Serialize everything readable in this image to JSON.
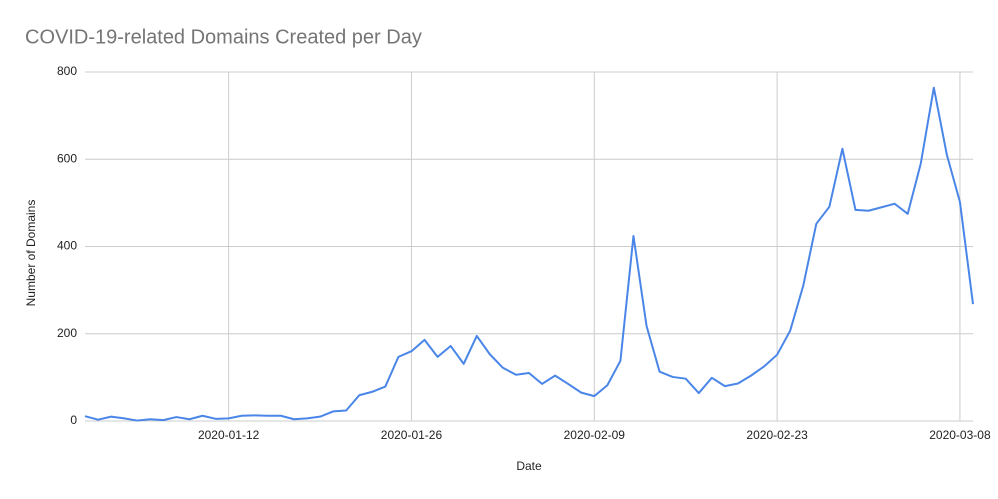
{
  "chart_data": {
    "type": "line",
    "title": "COVID-19-related Domains Created per Day",
    "x_label": "Date",
    "y_label": "Number of Domains",
    "x": [
      "2020-01-01",
      "2020-01-02",
      "2020-01-03",
      "2020-01-04",
      "2020-01-05",
      "2020-01-06",
      "2020-01-07",
      "2020-01-08",
      "2020-01-09",
      "2020-01-10",
      "2020-01-11",
      "2020-01-12",
      "2020-01-13",
      "2020-01-14",
      "2020-01-15",
      "2020-01-16",
      "2020-01-17",
      "2020-01-18",
      "2020-01-19",
      "2020-01-20",
      "2020-01-21",
      "2020-01-22",
      "2020-01-23",
      "2020-01-24",
      "2020-01-25",
      "2020-01-26",
      "2020-01-27",
      "2020-01-28",
      "2020-01-29",
      "2020-01-30",
      "2020-01-31",
      "2020-02-01",
      "2020-02-02",
      "2020-02-03",
      "2020-02-04",
      "2020-02-05",
      "2020-02-06",
      "2020-02-07",
      "2020-02-08",
      "2020-02-09",
      "2020-02-10",
      "2020-02-11",
      "2020-02-12",
      "2020-02-13",
      "2020-02-14",
      "2020-02-15",
      "2020-02-16",
      "2020-02-17",
      "2020-02-18",
      "2020-02-19",
      "2020-02-20",
      "2020-02-21",
      "2020-02-22",
      "2020-02-23",
      "2020-02-24",
      "2020-02-25",
      "2020-02-26",
      "2020-02-27",
      "2020-02-28",
      "2020-02-29",
      "2020-03-01",
      "2020-03-02",
      "2020-03-03",
      "2020-03-04",
      "2020-03-05",
      "2020-03-06",
      "2020-03-07",
      "2020-03-08",
      "2020-03-09"
    ],
    "values": [
      11,
      3,
      10,
      6,
      1,
      4,
      2,
      9,
      4,
      12,
      5,
      6,
      12,
      13,
      12,
      12,
      4,
      6,
      10,
      22,
      24,
      59,
      67,
      79,
      147,
      160,
      186,
      147,
      172,
      131,
      195,
      153,
      122,
      106,
      110,
      85,
      104,
      85,
      65,
      57,
      82,
      138,
      424,
      218,
      113,
      101,
      97,
      64,
      99,
      80,
      86,
      104,
      125,
      152,
      207,
      310,
      452,
      491,
      624,
      484,
      482,
      490,
      498,
      475,
      590,
      764,
      610,
      502,
      268
    ],
    "color": "#4a86e8",
    "xlim": [
      "2020-01-01",
      "2020-03-09"
    ],
    "xticks": [
      "2020-01-12",
      "2020-01-26",
      "2020-02-09",
      "2020-02-23",
      "2020-03-08"
    ],
    "ylim": [
      0,
      800
    ],
    "yticks": [
      0,
      200,
      400,
      600,
      800
    ],
    "grid": true
  }
}
